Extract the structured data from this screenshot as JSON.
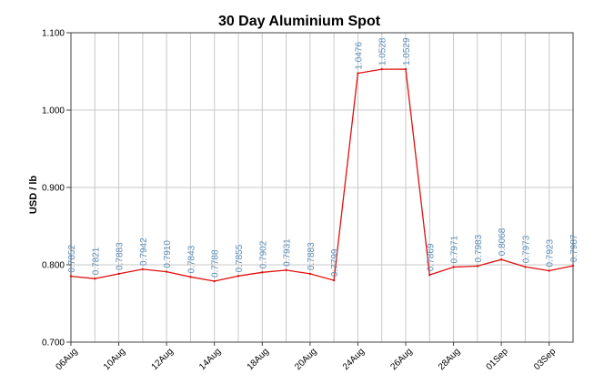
{
  "chart_data": {
    "type": "line",
    "title": "30 Day Aluminium Spot",
    "xlabel": "",
    "ylabel": "USD / lb",
    "ylim": [
      0.7,
      1.1
    ],
    "yticks": [
      "0.700",
      "0.800",
      "0.900",
      "1.000",
      "1.100"
    ],
    "xtick_labels": [
      "06Aug",
      "10Aug",
      "12Aug",
      "14Aug",
      "18Aug",
      "20Aug",
      "24Aug",
      "26Aug",
      "28Aug",
      "01Sep",
      "03Sep"
    ],
    "grid": true,
    "legend": "none",
    "series": [
      {
        "values": [
          0.7852,
          0.7821,
          0.7883,
          0.7942,
          0.791,
          0.7843,
          0.7788,
          0.7855,
          0.7902,
          0.7931,
          0.7883,
          0.7799,
          1.0476,
          1.0528,
          1.0529,
          0.7869,
          0.7971,
          0.7983,
          0.8068,
          0.7973,
          0.7923,
          0.7987
        ],
        "labels": [
          "0.7852",
          "0.7821",
          "0.7883",
          "0.7942",
          "0.7910",
          "0.7843",
          "0.7788",
          "0.7855",
          "0.7902",
          "0.7931",
          "0.7883",
          "0.7799",
          "1.0476",
          "1.0528",
          "1.0529",
          "0.7869",
          "0.7971",
          "0.7983",
          "0.8068",
          "0.7973",
          "0.7923",
          "0.7987"
        ]
      }
    ],
    "colors": {
      "line": "#e01010",
      "data_label": "#5b8db8",
      "grid": "#c8c8c8",
      "axis": "#404040"
    }
  }
}
